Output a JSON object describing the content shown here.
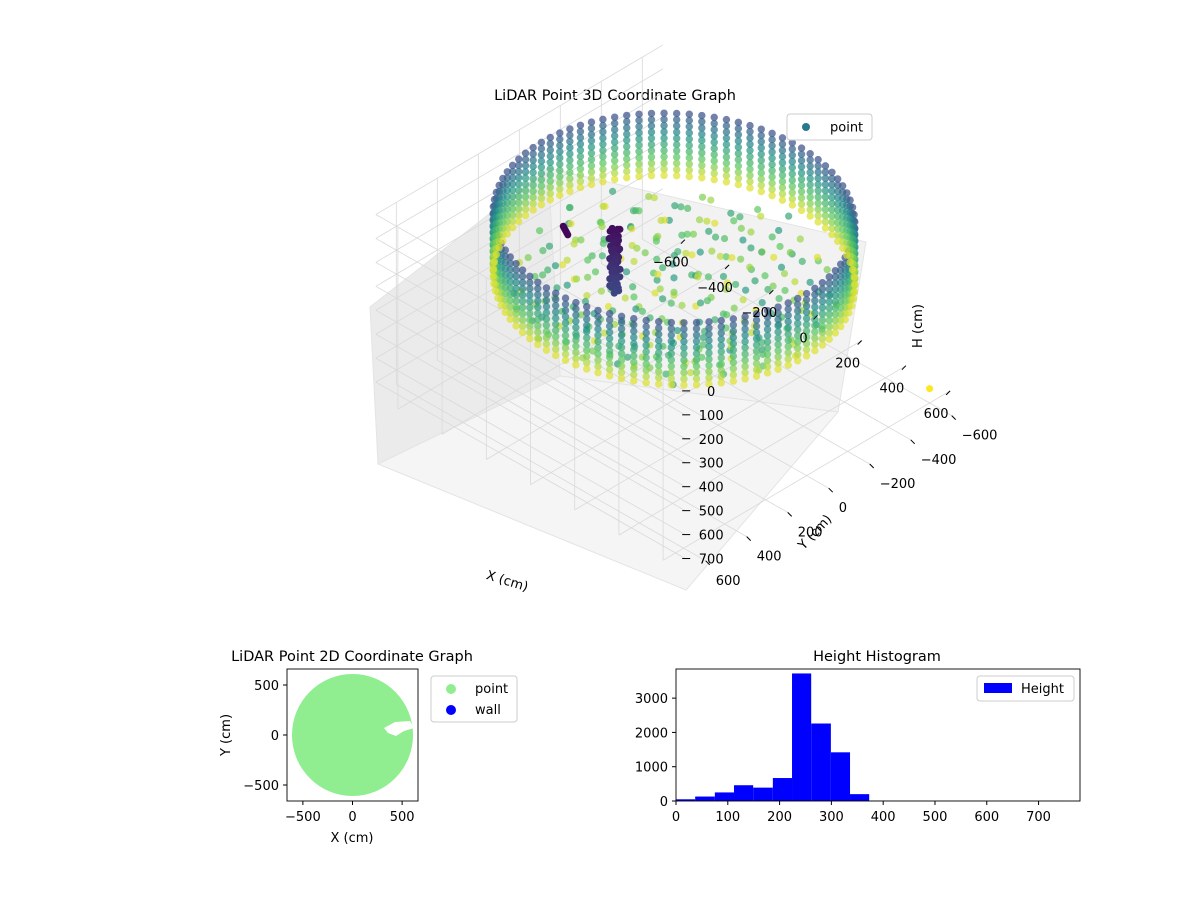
{
  "colors": {
    "viridis_dark": "#440154",
    "viridis_mid": "#21918c",
    "viridis_light": "#fde725",
    "scatter2d_point": "#90ee90",
    "scatter2d_wall": "#0000ff",
    "histogram_bar": "#0000ff",
    "pane": "#f2f2f2"
  },
  "chart_data": [
    {
      "type": "scatter",
      "projection": "3d",
      "title": "LiDAR Point 3D Coordinate Graph",
      "xlabel": "X (cm)",
      "ylabel": "Y (cm)",
      "zlabel": "H (cm)",
      "xlim": [
        -700,
        700
      ],
      "ylim": [
        -700,
        700
      ],
      "zlim": [
        0,
        760
      ],
      "z_axis_inverted": true,
      "x_ticks": [
        "−600",
        "−400",
        "−200",
        "0",
        "200",
        "400",
        "600"
      ],
      "y_ticks": [
        "−600",
        "−400",
        "−200",
        "0",
        "200",
        "400",
        "600"
      ],
      "z_ticks": [
        "0",
        "100",
        "200",
        "300",
        "400",
        "500",
        "600",
        "700"
      ],
      "grid": true,
      "legend": {
        "position": "top-right",
        "entries": [
          "point"
        ]
      },
      "colormap": "viridis",
      "series": [
        {
          "name": "point",
          "description_of_shape": "cylindrical wall ring of radius ~600 cm spanning H 0–260, floor points near H 250–330, a person-shaped cluster near x=-100,y=150",
          "ring_radius": 600,
          "ring_h_range": [
            0,
            260
          ],
          "outlier": [
            {
              "x": 600,
              "y": -600,
              "h": 700
            }
          ]
        }
      ]
    },
    {
      "type": "scatter",
      "title": "LiDAR Point 2D Coordinate Graph",
      "xlabel": "X (cm)",
      "ylabel": "Y (cm)",
      "xlim": [
        -660,
        660
      ],
      "ylim": [
        -660,
        660
      ],
      "x_ticks": [
        "−500",
        "0",
        "500"
      ],
      "y_ticks": [
        "−500",
        "0",
        "500"
      ],
      "legend": {
        "position": "outside-right",
        "entries": [
          "point",
          "wall"
        ]
      },
      "series": [
        {
          "name": "point",
          "shape": "filled disc of radius ~610 cm centred at origin"
        },
        {
          "name": "wall",
          "points": []
        }
      ]
    },
    {
      "type": "bar",
      "subtype": "histogram",
      "title": "Height Histogram",
      "xlabel": "",
      "ylabel": "",
      "xlim": [
        0,
        780
      ],
      "ylim": [
        0,
        3850
      ],
      "x_ticks": [
        "0",
        "100",
        "200",
        "300",
        "400",
        "500",
        "600",
        "700"
      ],
      "y_ticks": [
        "0",
        "1000",
        "2000",
        "3000"
      ],
      "legend": {
        "position": "top-right",
        "entries": [
          "Height"
        ]
      },
      "bin_edges": [
        0,
        37,
        75,
        112,
        149,
        187,
        224,
        261,
        299,
        336,
        373,
        411,
        448,
        485,
        523,
        560,
        597,
        635,
        672,
        709,
        746
      ],
      "series": [
        {
          "name": "Height",
          "values": [
            50,
            130,
            250,
            460,
            390,
            670,
            3720,
            2260,
            1420,
            200,
            10,
            5,
            5,
            3,
            3,
            3,
            3,
            3,
            3,
            3
          ]
        }
      ]
    }
  ]
}
